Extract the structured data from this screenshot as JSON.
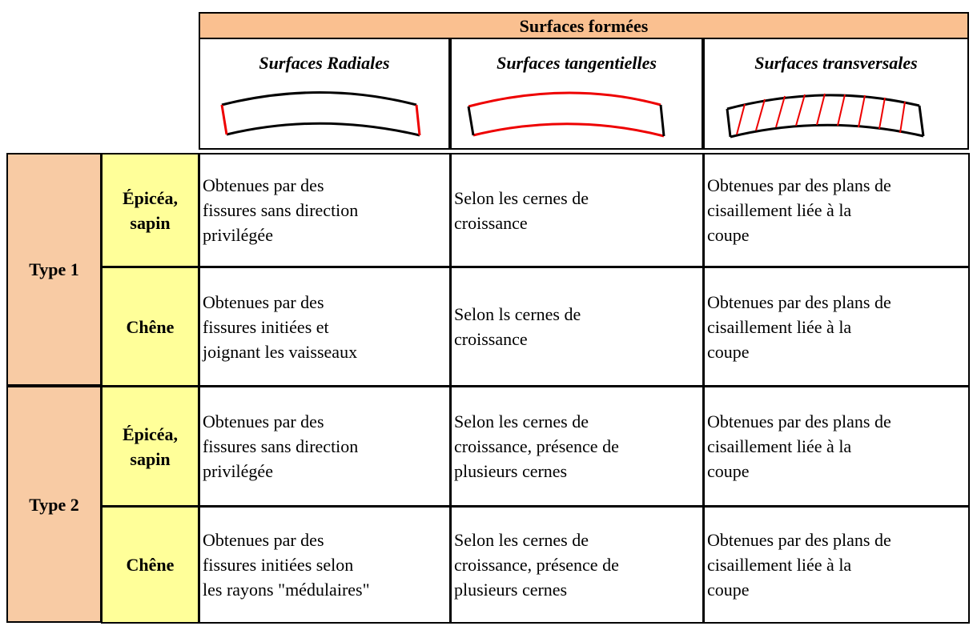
{
  "header": {
    "title": "Surfaces formées",
    "columns": [
      "Surfaces Radiales",
      "Surfaces tangentielles",
      "Surfaces transversales"
    ]
  },
  "groups": [
    {
      "label": "Type 1",
      "rows": [
        {
          "species": [
            "Épicéa,",
            "sapin"
          ],
          "cells": [
            [
              "Obtenues par des",
              "fissures sans direction",
              "privilégée"
            ],
            [
              "Selon les cernes de",
              "croissance"
            ],
            [
              "Obtenues par des plans de",
              "cisaillement liée à la",
              "coupe"
            ]
          ]
        },
        {
          "species": [
            "Chêne"
          ],
          "cells": [
            [
              "Obtenues par des",
              "fissures initiées et",
              "joignant les vaisseaux"
            ],
            [
              "Selon ls cernes de",
              "croissance"
            ],
            [
              "Obtenues par des plans de",
              "cisaillement liée à la",
              "coupe"
            ]
          ]
        }
      ]
    },
    {
      "label": "Type 2",
      "rows": [
        {
          "species": [
            "Épicéa,",
            "sapin"
          ],
          "cells": [
            [
              "Obtenues par des",
              "fissures sans direction",
              "privilégée"
            ],
            [
              "Selon les cernes de",
              "croissance, présence de",
              "plusieurs cernes"
            ],
            [
              "Obtenues par des plans de",
              "cisaillement liée à la",
              "coupe"
            ]
          ]
        },
        {
          "species": [
            "Chêne"
          ],
          "cells": [
            [
              "Obtenues par des",
              "fissures initiées selon",
              "les rayons \"médulaires\""
            ],
            [
              "Selon les cernes de",
              "croissance, présence de",
              "plusieurs cernes"
            ],
            [
              "Obtenues par des plans de",
              "cisaillement liée à la",
              "coupe"
            ]
          ]
        }
      ]
    }
  ]
}
